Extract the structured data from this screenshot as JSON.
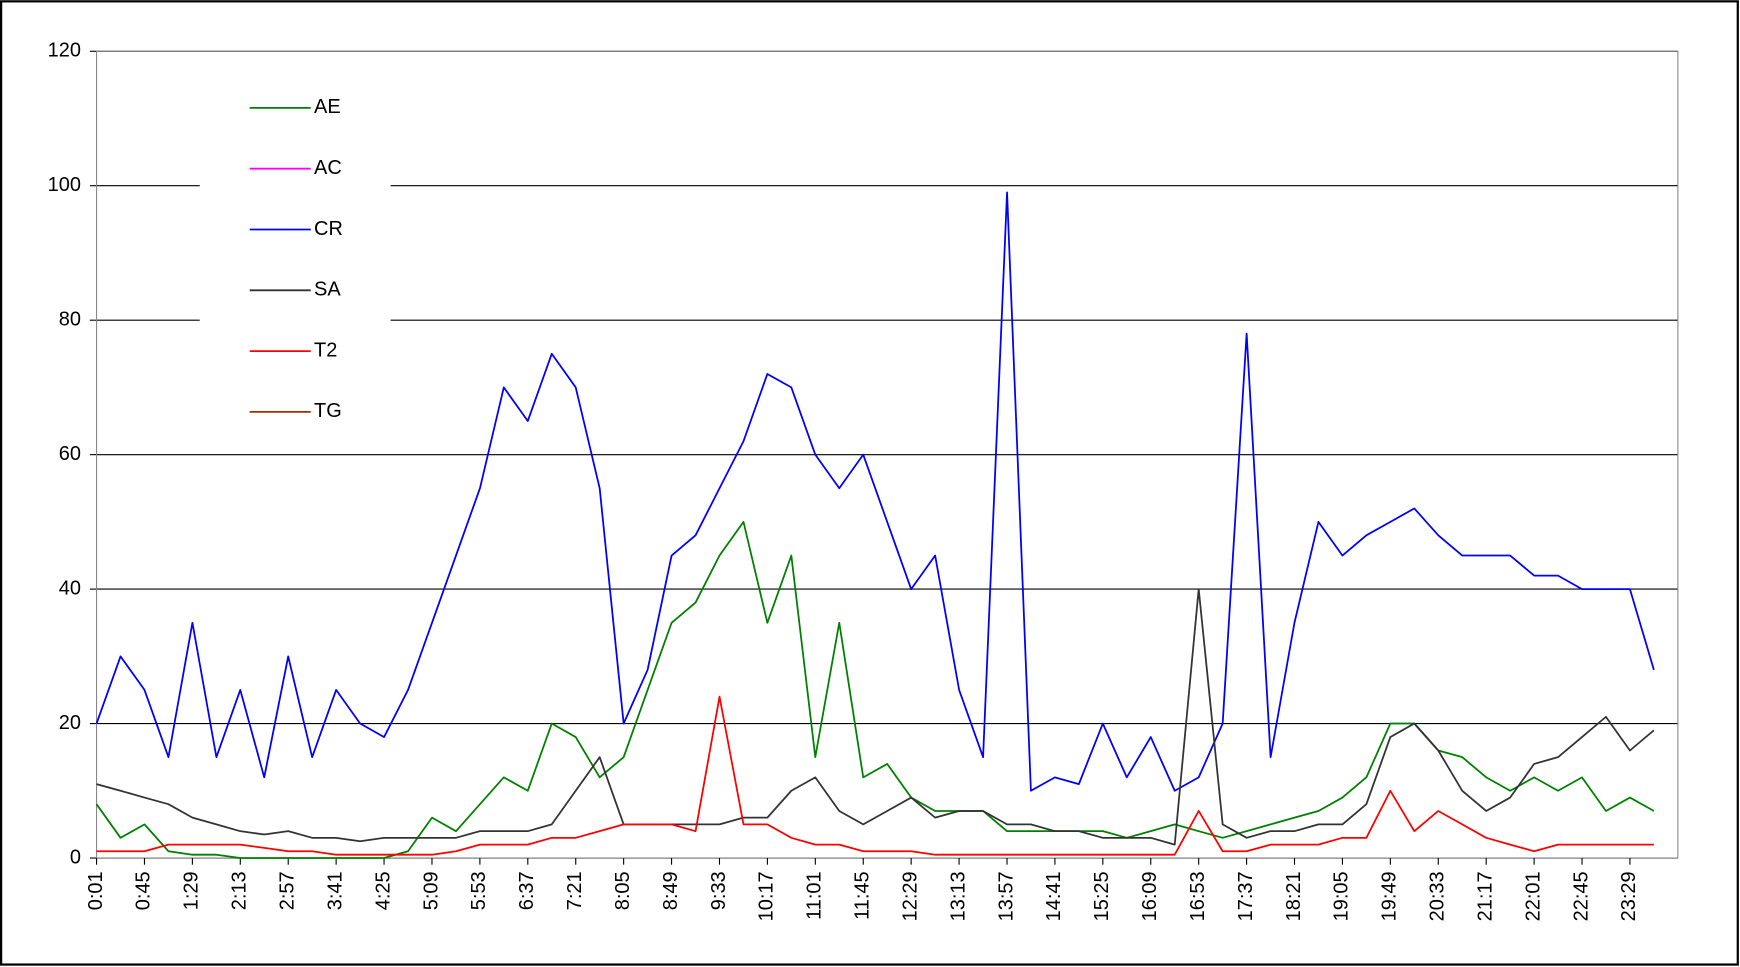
{
  "chart_data": {
    "type": "line",
    "categories": [
      "0:01",
      null,
      "0:45",
      null,
      "1:29",
      null,
      "2:13",
      null,
      "2:57",
      null,
      "3:41",
      null,
      "4:25",
      null,
      "5:09",
      null,
      "5:53",
      null,
      "6:37",
      null,
      "7:21",
      null,
      "8:05",
      null,
      "8:49",
      null,
      "9:33",
      null,
      "10:17",
      null,
      "11:01",
      null,
      "11:45",
      null,
      "12:29",
      null,
      "13:13",
      null,
      "13:57",
      null,
      "14:41",
      null,
      "15:25",
      null,
      "16:09",
      null,
      "16:53",
      null,
      "17:37",
      null,
      "18:21",
      null,
      "19:05",
      null,
      "19:49",
      null,
      "20:33",
      null,
      "21:17",
      null,
      "22:01",
      null,
      "22:45",
      null,
      "23:29",
      null
    ],
    "series": [
      {
        "name": "AE",
        "color": "#008000",
        "values": [
          8,
          3,
          5,
          1,
          0.5,
          0.5,
          0,
          0,
          0,
          0,
          0,
          0,
          0,
          1,
          6,
          4,
          8,
          12,
          10,
          20,
          18,
          12,
          15,
          25,
          35,
          38,
          45,
          50,
          35,
          45,
          15,
          35,
          12,
          14,
          9,
          7,
          7,
          7,
          4,
          4,
          4,
          4,
          4,
          3,
          4,
          5,
          4,
          3,
          4,
          5,
          6,
          7,
          9,
          12,
          20,
          20,
          16,
          15,
          12,
          10,
          12,
          10,
          12,
          7,
          9,
          7
        ]
      },
      {
        "name": "AC",
        "color": "#ff00ff",
        "values": [
          null,
          null,
          null,
          null,
          null,
          null,
          null,
          null,
          null,
          null,
          null,
          null,
          null,
          null,
          null,
          null,
          null,
          null,
          null,
          null,
          null,
          null,
          null,
          null,
          null,
          null,
          null,
          null,
          null,
          null,
          null,
          null,
          null,
          null,
          null,
          null,
          null,
          null,
          null,
          null,
          null,
          null,
          null,
          null,
          null,
          null,
          null,
          null,
          null,
          null,
          null,
          null,
          null,
          null,
          null,
          null,
          null,
          null,
          null,
          null,
          null,
          null,
          null,
          null,
          null,
          null
        ]
      },
      {
        "name": "CR",
        "color": "#0000ff",
        "values": [
          20,
          30,
          25,
          15,
          35,
          15,
          25,
          12,
          30,
          15,
          25,
          20,
          18,
          25,
          35,
          45,
          55,
          70,
          65,
          75,
          70,
          55,
          20,
          28,
          45,
          48,
          55,
          62,
          72,
          70,
          60,
          55,
          60,
          50,
          40,
          45,
          25,
          15,
          99,
          10,
          12,
          11,
          20,
          12,
          18,
          10,
          12,
          20,
          78,
          15,
          35,
          50,
          45,
          48,
          50,
          52,
          48,
          45,
          45,
          45,
          42,
          42,
          40,
          40,
          40,
          28
        ]
      },
      {
        "name": "SA",
        "color": "#333333",
        "values": [
          11,
          10,
          9,
          8,
          6,
          5,
          4,
          3.5,
          4,
          3,
          3,
          2.5,
          3,
          3,
          3,
          3,
          4,
          4,
          4,
          5,
          10,
          15,
          5,
          5,
          5,
          5,
          5,
          6,
          6,
          10,
          12,
          7,
          5,
          7,
          9,
          6,
          7,
          7,
          5,
          5,
          4,
          4,
          3,
          3,
          3,
          2,
          40,
          5,
          3,
          4,
          4,
          5,
          5,
          8,
          18,
          20,
          16,
          10,
          7,
          9,
          14,
          15,
          18,
          21,
          16,
          19
        ]
      },
      {
        "name": "T2",
        "color": "#ff0000",
        "values": [
          1,
          1,
          1,
          2,
          2,
          2,
          2,
          1.5,
          1,
          1,
          0.5,
          0.5,
          0.5,
          0.5,
          0.5,
          1,
          2,
          2,
          2,
          3,
          3,
          4,
          5,
          5,
          5,
          4,
          24,
          5,
          5,
          3,
          2,
          2,
          1,
          1,
          1,
          0.5,
          0.5,
          0.5,
          0.5,
          0.5,
          0.5,
          0.5,
          0.5,
          0.5,
          0.5,
          0.5,
          7,
          1,
          1,
          2,
          2,
          2,
          3,
          3,
          10,
          4,
          7,
          5,
          3,
          2,
          1,
          2,
          2,
          2,
          2,
          2
        ]
      },
      {
        "name": "TG",
        "color": "#993300",
        "values": [
          null,
          null,
          null,
          null,
          null,
          null,
          null,
          null,
          null,
          null,
          null,
          null,
          null,
          null,
          null,
          null,
          null,
          null,
          null,
          null,
          null,
          null,
          null,
          null,
          null,
          null,
          null,
          null,
          null,
          null,
          null,
          null,
          null,
          null,
          null,
          null,
          null,
          null,
          null,
          null,
          null,
          null,
          null,
          null,
          null,
          null,
          null,
          null,
          null,
          null,
          null,
          null,
          null,
          null,
          null,
          null,
          null,
          null,
          null,
          null,
          null,
          null,
          null,
          null,
          null,
          null
        ]
      }
    ],
    "ylim": [
      0,
      120
    ],
    "yticks": [
      0,
      20,
      40,
      60,
      80,
      100,
      120
    ],
    "grid": true,
    "legend": "upper left"
  }
}
